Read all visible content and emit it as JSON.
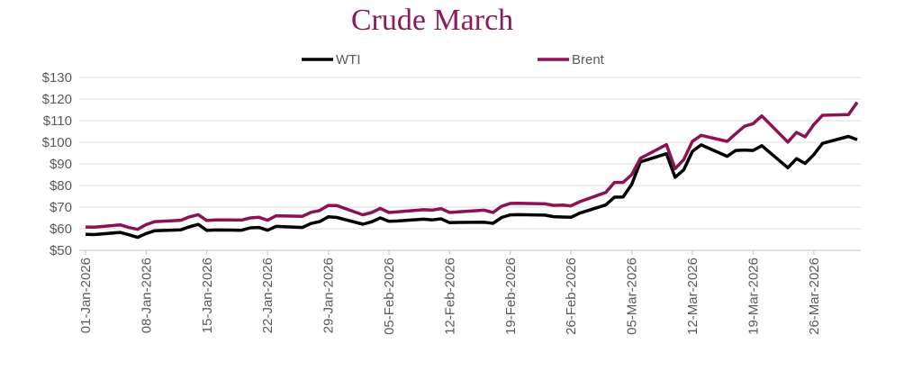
{
  "chart_data": {
    "type": "line",
    "title": "Crude March",
    "xlabel": "",
    "ylabel": "",
    "ylim": [
      50,
      130
    ],
    "yticks": [
      "$50",
      "$60",
      "$70",
      "$80",
      "$90",
      "$100",
      "$110",
      "$120",
      "$130"
    ],
    "ytick_values": [
      50,
      60,
      70,
      80,
      90,
      100,
      110,
      120,
      130
    ],
    "xticks": [
      "01-Jan-2026",
      "08-Jan-2026",
      "15-Jan-2026",
      "22-Jan-2026",
      "29-Jan-2026",
      "05-Feb-2026",
      "12-Feb-2026",
      "19-Feb-2026",
      "26-Feb-2026",
      "05-Mar-2026",
      "12-Mar-2026",
      "19-Mar-2026",
      "26-Mar-2026"
    ],
    "xtick_dates": [
      "2026-01-01",
      "2026-01-08",
      "2026-01-15",
      "2026-01-22",
      "2026-01-29",
      "2026-02-05",
      "2026-02-12",
      "2026-02-19",
      "2026-02-26",
      "2026-03-05",
      "2026-03-12",
      "2026-03-19",
      "2026-03-26"
    ],
    "xlim": [
      "2026-01-01",
      "2026-03-31"
    ],
    "grid": true,
    "legend_position": "top",
    "x": [
      "2026-01-01",
      "2026-01-02",
      "2026-01-05",
      "2026-01-06",
      "2026-01-07",
      "2026-01-08",
      "2026-01-09",
      "2026-01-12",
      "2026-01-13",
      "2026-01-14",
      "2026-01-15",
      "2026-01-16",
      "2026-01-19",
      "2026-01-20",
      "2026-01-21",
      "2026-01-22",
      "2026-01-23",
      "2026-01-26",
      "2026-01-27",
      "2026-01-28",
      "2026-01-29",
      "2026-01-30",
      "2026-02-02",
      "2026-02-03",
      "2026-02-04",
      "2026-02-05",
      "2026-02-06",
      "2026-02-09",
      "2026-02-10",
      "2026-02-11",
      "2026-02-12",
      "2026-02-13",
      "2026-02-16",
      "2026-02-17",
      "2026-02-18",
      "2026-02-19",
      "2026-02-20",
      "2026-02-23",
      "2026-02-24",
      "2026-02-25",
      "2026-02-26",
      "2026-02-27",
      "2026-03-02",
      "2026-03-03",
      "2026-03-04",
      "2026-03-05",
      "2026-03-06",
      "2026-03-09",
      "2026-03-10",
      "2026-03-11",
      "2026-03-12",
      "2026-03-13",
      "2026-03-16",
      "2026-03-17",
      "2026-03-18",
      "2026-03-19",
      "2026-03-20",
      "2026-03-23",
      "2026-03-24",
      "2026-03-25",
      "2026-03-26",
      "2026-03-27",
      "2026-03-30",
      "2026-03-31"
    ],
    "series": [
      {
        "name": "WTI",
        "color": "#000000",
        "values": [
          57.4,
          57.3,
          58.3,
          57.2,
          56.0,
          57.8,
          59.1,
          59.5,
          60.9,
          62.0,
          59.2,
          59.4,
          59.3,
          60.4,
          60.6,
          59.3,
          61.1,
          60.6,
          62.4,
          63.3,
          65.5,
          65.2,
          62.1,
          63.2,
          65.0,
          63.4,
          63.6,
          64.4,
          64.1,
          64.6,
          62.8,
          62.9,
          63.0,
          62.5,
          65.2,
          66.4,
          66.5,
          66.3,
          65.6,
          65.4,
          65.3,
          67.2,
          71.0,
          74.6,
          74.7,
          80.5,
          90.9,
          94.7,
          83.8,
          87.3,
          95.8,
          98.8,
          93.5,
          96.2,
          96.4,
          96.2,
          98.4,
          88.2,
          92.4,
          90.2,
          94.3,
          99.5,
          102.7,
          101.2
        ]
      },
      {
        "name": "Brent",
        "color": "#8B1352",
        "values": [
          60.8,
          60.7,
          61.8,
          60.6,
          59.7,
          61.9,
          63.3,
          63.9,
          65.5,
          66.5,
          63.8,
          64.1,
          64.0,
          65.0,
          65.3,
          63.9,
          66.0,
          65.7,
          67.6,
          68.4,
          70.8,
          70.7,
          66.4,
          67.5,
          69.4,
          67.5,
          67.8,
          68.8,
          68.6,
          69.3,
          67.5,
          67.8,
          68.6,
          67.5,
          70.4,
          71.7,
          71.8,
          71.5,
          70.8,
          70.9,
          70.6,
          72.5,
          76.8,
          81.4,
          81.4,
          85.0,
          92.6,
          98.9,
          87.8,
          92.0,
          100.4,
          103.2,
          100.4,
          104.0,
          107.4,
          108.6,
          112.2,
          100.1,
          104.6,
          102.5,
          108.2,
          112.5,
          112.8,
          118.5
        ]
      }
    ]
  }
}
